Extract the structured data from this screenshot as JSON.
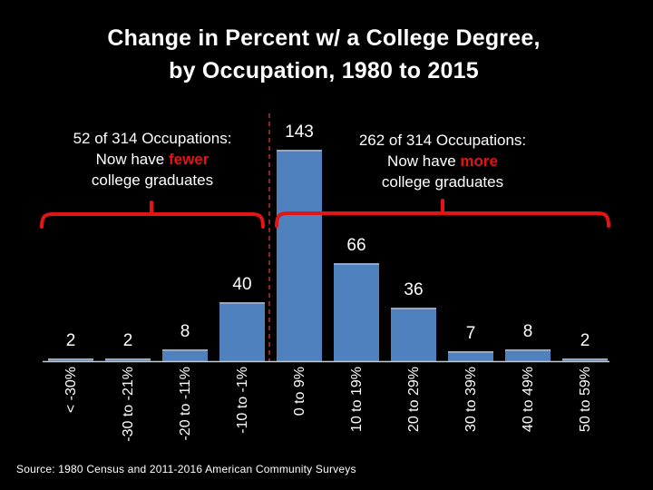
{
  "colors": {
    "background": "#000000",
    "text": "#FFFFFF",
    "bar": "#4E81BD",
    "bar_top_edge": "#8FA9CC",
    "accent_red": "#E21414",
    "divider_red": "#8B2626",
    "axis": "#C4CBD4"
  },
  "annotations": {
    "left": {
      "line1": "52 of 314 Occupations:",
      "line2_prefix": "Now have ",
      "line2_emphasis": "fewer",
      "line3": "college graduates"
    },
    "right": {
      "line1": "262 of 314 Occupations:",
      "line2_prefix": "Now have ",
      "line2_emphasis": "more",
      "line3": "college graduates"
    }
  },
  "chart_data": {
    "type": "bar",
    "title": "Change in Percent w/ a College Degree, by Occupation, 1980 to 2015",
    "title_lines": [
      "Change in Percent w/ a College Degree,",
      "by Occupation, 1980 to 2015"
    ],
    "categories": [
      "< -30%",
      "-30 to -21%",
      "-20 to -11%",
      "-10 to -1%",
      "0 to 9%",
      "10 to 19%",
      "20 to 29%",
      "30 to 39%",
      "40 to 49%",
      "50 to 59%"
    ],
    "values": [
      2,
      2,
      8,
      40,
      143,
      66,
      36,
      7,
      8,
      2
    ],
    "xlabel": "",
    "ylabel": "",
    "grid": false,
    "legend": false,
    "value_labels_shown": true,
    "divider_between_indices": [
      3,
      4
    ],
    "source": "Source: 1980 Census and 2011-2016 American Community Surveys"
  }
}
